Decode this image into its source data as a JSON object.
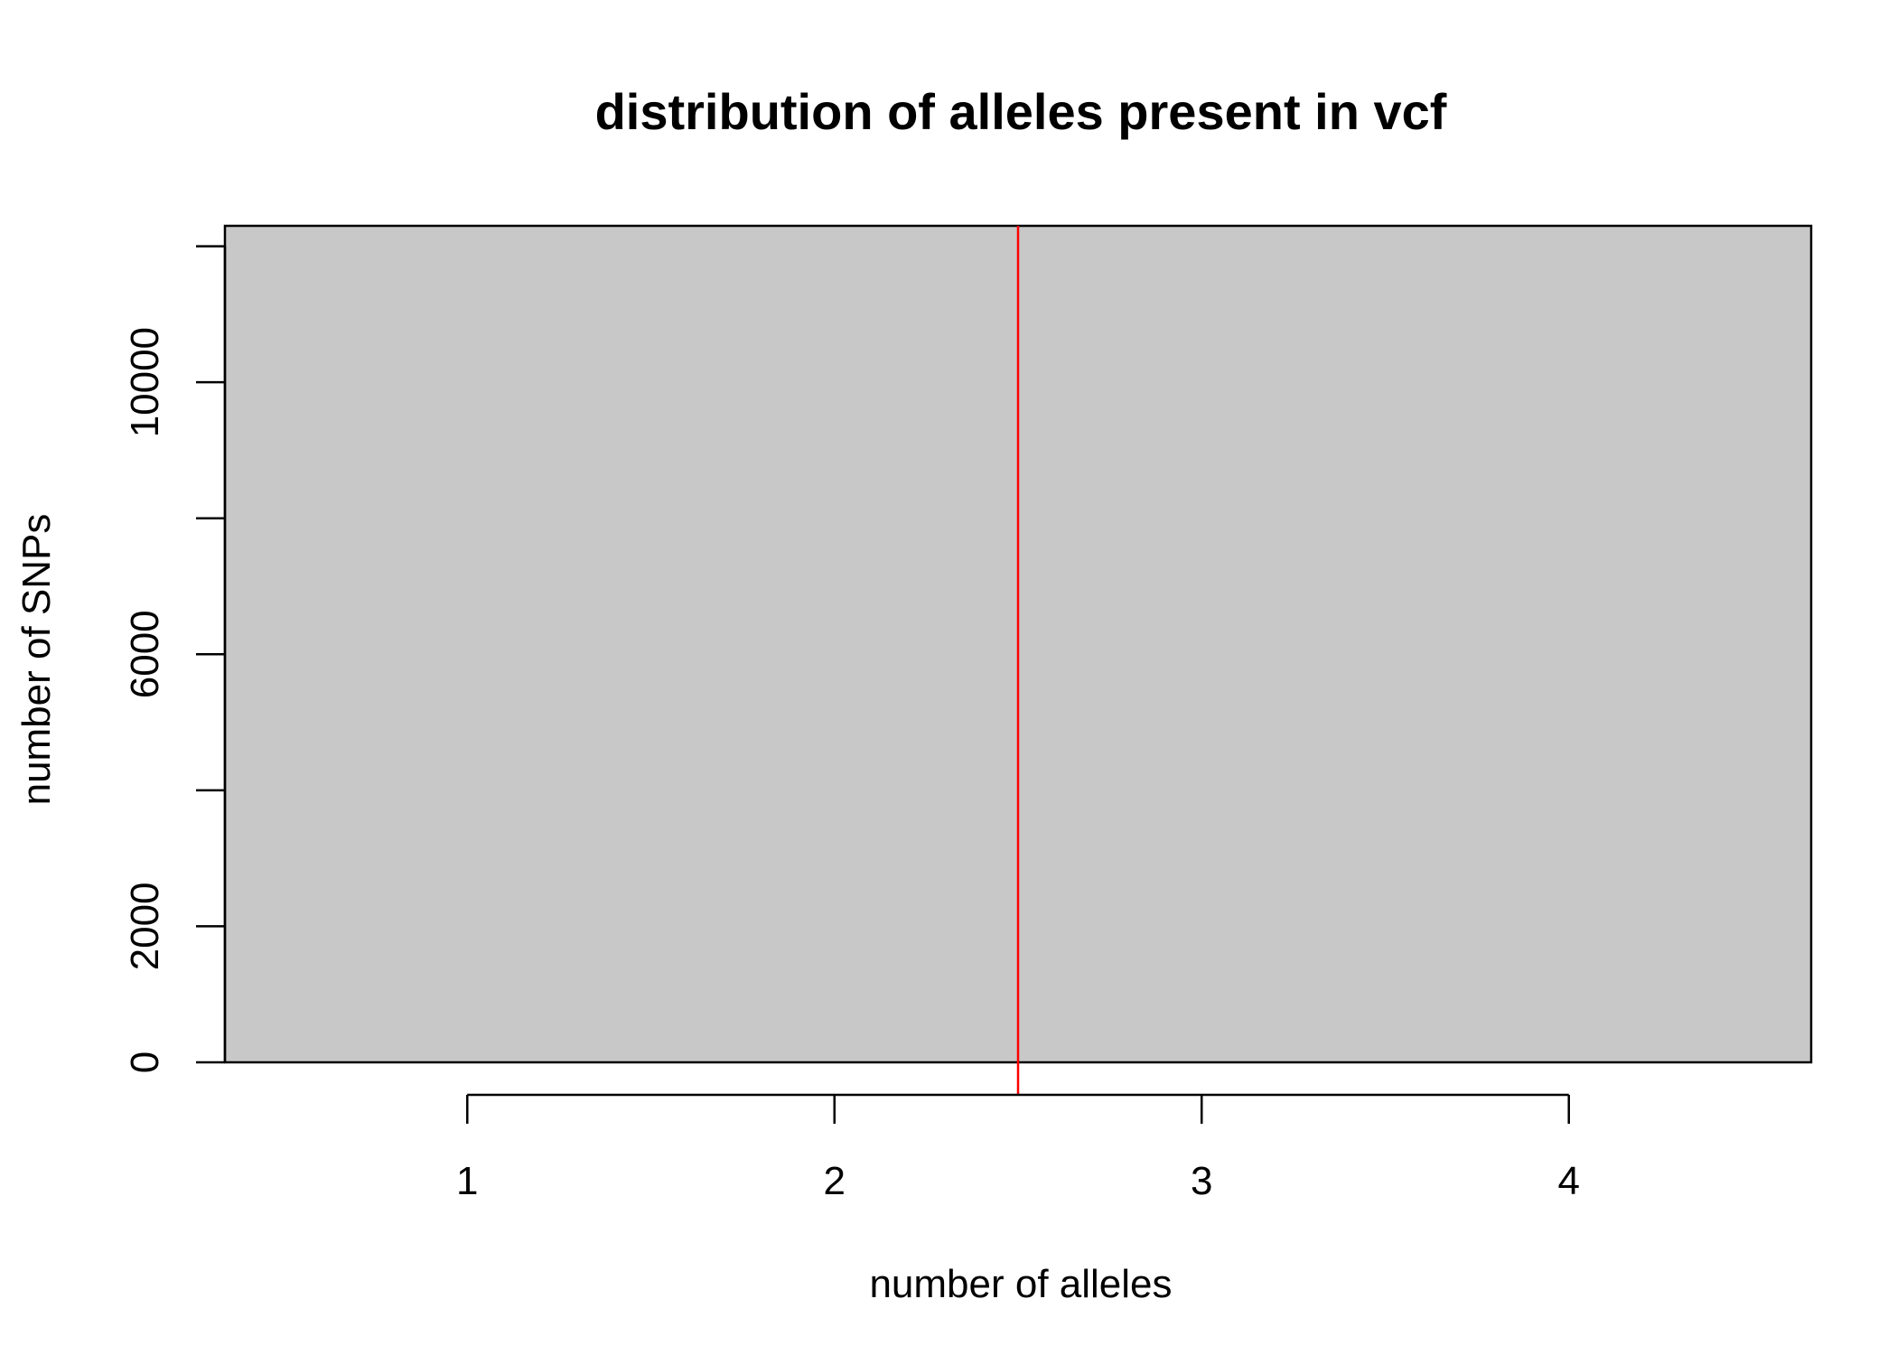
{
  "chart_data": {
    "type": "bar",
    "title": "distribution of alleles present in vcf",
    "xlabel": "number of alleles",
    "ylabel": "number of SNPs",
    "categories": [
      "2"
    ],
    "values": [
      12300
    ],
    "bar_x_range": [
      0.34,
      4.66
    ],
    "xlim": [
      0.34,
      4.66
    ],
    "ylim": [
      0,
      12300
    ],
    "x_ticks": [
      1,
      2,
      3,
      4
    ],
    "y_ticks": [
      0,
      2000,
      4000,
      6000,
      8000,
      10000,
      12000
    ],
    "y_tick_labels": [
      "0",
      "2000",
      "",
      "6000",
      "",
      "10000",
      ""
    ],
    "x_tick_labels": [
      "1",
      "2",
      "3",
      "4"
    ],
    "reference_line": {
      "x": 2.5,
      "color": "#ff0000"
    },
    "bar_fill": "#c8c8c8",
    "grid": false,
    "legend": "none"
  }
}
